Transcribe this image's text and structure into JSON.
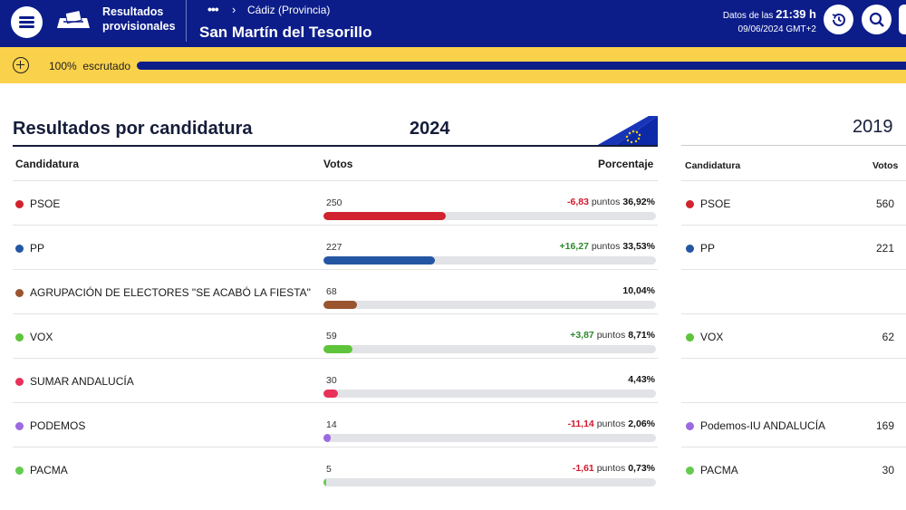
{
  "header": {
    "brand_line1": "Resultados",
    "brand_line2": "provisionales",
    "breadcrumb_more": "•••",
    "breadcrumb": "Cádiz (Provincia)",
    "place": "San Martín del Tesorillo",
    "data_prefix": "Datos de las",
    "time": "21:39 h",
    "date_tz": "09/06/2024 GMT+2"
  },
  "progress": {
    "percent_label": "100%",
    "status_label": "escrutado",
    "value": 100
  },
  "section": {
    "title": "Resultados por candidatura",
    "year_current": "2024",
    "year_previous": "2019"
  },
  "table2024": {
    "headers": {
      "candidatura": "Candidatura",
      "votos": "Votos",
      "porcentaje": "Porcentaje"
    },
    "rows": [
      {
        "name": "PSOE",
        "votes": "250",
        "change": "-6,83",
        "change_sign": "neg",
        "points": "puntos",
        "percent": "36,92%",
        "share": 36.92,
        "color": "#d0232f"
      },
      {
        "name": "PP",
        "votes": "227",
        "change": "+16,27",
        "change_sign": "pos",
        "points": "puntos",
        "percent": "33,53%",
        "share": 33.53,
        "color": "#2456a3"
      },
      {
        "name": "AGRUPACIÓN DE ELECTORES \"SE ACABÓ LA FIESTA\"",
        "votes": "68",
        "change": "",
        "change_sign": "",
        "points": "",
        "percent": "10,04%",
        "share": 10.04,
        "color": "#9a5530"
      },
      {
        "name": "VOX",
        "votes": "59",
        "change": "+3,87",
        "change_sign": "pos",
        "points": "puntos",
        "percent": "8,71%",
        "share": 8.71,
        "color": "#5ec43b"
      },
      {
        "name": "SUMAR ANDALUCÍA",
        "votes": "30",
        "change": "",
        "change_sign": "",
        "points": "",
        "percent": "4,43%",
        "share": 4.43,
        "color": "#e8305a"
      },
      {
        "name": "PODEMOS",
        "votes": "14",
        "change": "-11,14",
        "change_sign": "neg",
        "points": "puntos",
        "percent": "2,06%",
        "share": 2.06,
        "color": "#9c6ae0"
      },
      {
        "name": "PACMA",
        "votes": "5",
        "change": "-1,61",
        "change_sign": "neg",
        "points": "puntos",
        "percent": "0,73%",
        "share": 0.73,
        "color": "#63cc4e"
      }
    ]
  },
  "table2019": {
    "headers": {
      "candidatura": "Candidatura",
      "votos": "Votos"
    },
    "rows": [
      {
        "name": "PSOE",
        "votes": "560",
        "color": "#d0232f"
      },
      {
        "name": "PP",
        "votes": "221",
        "color": "#2456a3"
      },
      {
        "name": "",
        "votes": "",
        "color": ""
      },
      {
        "name": "VOX",
        "votes": "62",
        "color": "#5ec43b"
      },
      {
        "name": "",
        "votes": "",
        "color": ""
      },
      {
        "name": "Podemos-IU ANDALUCÍA",
        "votes": "169",
        "color": "#9c6ae0"
      },
      {
        "name": "PACMA",
        "votes": "30",
        "color": "#63cc4e"
      }
    ]
  },
  "icons": {
    "menu": "menu-icon",
    "ballot": "ballot-box-icon",
    "history": "history-icon",
    "search": "search-icon",
    "expand": "plus-circle-icon",
    "flag": "eu-flag-icon"
  },
  "colors": {
    "header": "#0c1d8a",
    "strip": "#fad14b",
    "accent": "#0c1d8a"
  }
}
